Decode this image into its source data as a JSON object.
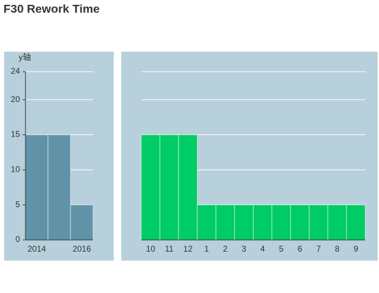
{
  "title": "F30 Rework Time",
  "chart_data": [
    {
      "type": "bar",
      "y_label": "y轴",
      "categories": [
        "2014",
        null,
        "2016"
      ],
      "values": [
        15,
        15,
        5
      ],
      "color": "#6193a8",
      "ylim": [
        0,
        24
      ],
      "yticks": [
        0,
        5,
        10,
        15,
        20,
        24
      ],
      "grid": true,
      "tick_labels": true,
      "y_axis": true
    },
    {
      "type": "bar",
      "categories": [
        "10",
        "11",
        "12",
        "1",
        "2",
        "3",
        "4",
        "5",
        "6",
        "7",
        "8",
        "9"
      ],
      "values": [
        15,
        15,
        15,
        5,
        5,
        5,
        5,
        5,
        5,
        5,
        5,
        5
      ],
      "color": "#00cc66",
      "ylim": [
        0,
        24
      ],
      "yticks": [
        0,
        5,
        10,
        15,
        20,
        24
      ],
      "grid": true,
      "tick_labels": false,
      "y_axis": false
    }
  ]
}
